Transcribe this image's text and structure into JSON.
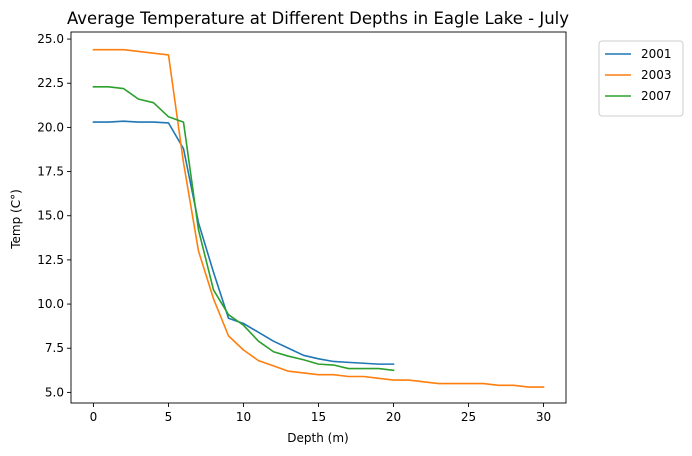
{
  "chart_data": {
    "type": "line",
    "title": "Average Temperature at Different Depths in Eagle Lake - July",
    "xlabel": "Depth (m)",
    "ylabel": "Temp (C°)",
    "xlim": [
      -1.5,
      31.5
    ],
    "ylim": [
      4.4,
      25.4
    ],
    "xticks": [
      0,
      5,
      10,
      15,
      20,
      25,
      30
    ],
    "yticks": [
      5.0,
      7.5,
      10.0,
      12.5,
      15.0,
      17.5,
      20.0,
      22.5,
      25.0
    ],
    "xtick_labels": [
      "0",
      "5",
      "10",
      "15",
      "20",
      "25",
      "30"
    ],
    "ytick_labels": [
      "5.0",
      "7.5",
      "10.0",
      "12.5",
      "15.0",
      "17.5",
      "20.0",
      "22.5",
      "25.0"
    ],
    "grid": false,
    "legend_position": "outside-top-right",
    "series": [
      {
        "name": "2001",
        "color": "#1f77b4",
        "x": [
          0,
          1,
          2,
          3,
          4,
          5,
          6,
          7,
          8,
          9,
          10,
          11,
          12,
          13,
          14,
          15,
          16,
          17,
          18,
          19,
          20
        ],
        "y": [
          20.3,
          20.3,
          20.35,
          20.3,
          20.3,
          20.25,
          18.8,
          14.6,
          11.8,
          9.2,
          8.9,
          8.4,
          7.9,
          7.5,
          7.1,
          6.9,
          6.75,
          6.7,
          6.65,
          6.6,
          6.6
        ]
      },
      {
        "name": "2003",
        "color": "#ff7f0e",
        "x": [
          0,
          1,
          2,
          3,
          4,
          5,
          6,
          7,
          8,
          9,
          10,
          11,
          12,
          13,
          14,
          15,
          16,
          17,
          18,
          19,
          20,
          21,
          22,
          23,
          24,
          25,
          26,
          27,
          28,
          29,
          30
        ],
        "y": [
          24.4,
          24.4,
          24.4,
          24.3,
          24.2,
          24.1,
          18.0,
          13.0,
          10.3,
          8.2,
          7.4,
          6.8,
          6.5,
          6.2,
          6.1,
          6.0,
          6.0,
          5.9,
          5.9,
          5.8,
          5.7,
          5.7,
          5.6,
          5.5,
          5.5,
          5.5,
          5.5,
          5.4,
          5.4,
          5.3,
          5.3
        ]
      },
      {
        "name": "2007",
        "color": "#2ca02c",
        "x": [
          0,
          1,
          2,
          3,
          4,
          5,
          6,
          7,
          8,
          9,
          10,
          11,
          12,
          13,
          14,
          15,
          16,
          17,
          18,
          19,
          20
        ],
        "y": [
          22.3,
          22.3,
          22.2,
          21.6,
          21.4,
          20.6,
          20.3,
          14.2,
          10.8,
          9.4,
          8.8,
          7.9,
          7.3,
          7.05,
          6.85,
          6.6,
          6.55,
          6.35,
          6.35,
          6.35,
          6.25
        ]
      }
    ]
  }
}
